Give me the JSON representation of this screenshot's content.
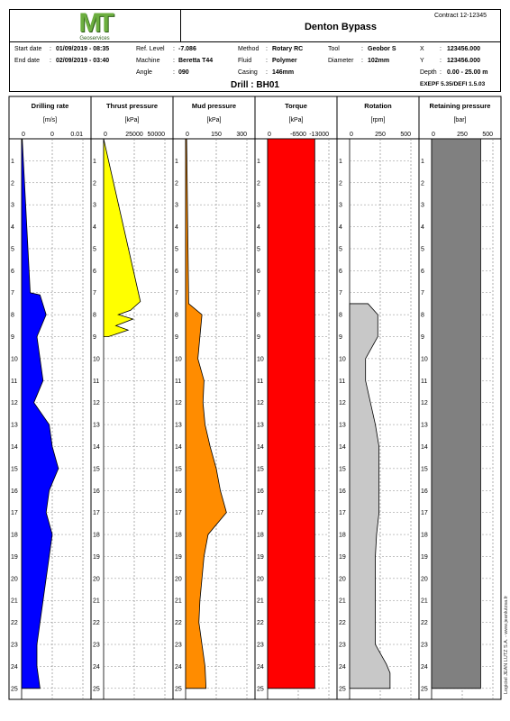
{
  "logo": {
    "letters": "MT",
    "subtitle": "Geoservices"
  },
  "title": "Denton Bypass",
  "contract": "Contract 12-12345",
  "info": {
    "start_label": "Start date",
    "start_value": "01/09/2019 - 08:35",
    "end_label": "End date",
    "end_value": "02/09/2019 - 03:40",
    "ref_label": "Ref. Level",
    "ref_value": "-7.086",
    "machine_label": "Machine",
    "machine_value": "Beretta T44",
    "angle_label": "Angle",
    "angle_value": "090",
    "method_label": "Method",
    "method_value": "Rotary RC",
    "fluid_label": "Fluid",
    "fluid_value": "Polymer",
    "casing_label": "Casing",
    "casing_value": "146mm",
    "tool_label": "Tool",
    "tool_value": "Geobor S",
    "diameter_label": "Diameter",
    "diameter_value": "102mm",
    "x_label": "X",
    "x_value": "123456.000",
    "y_label": "Y",
    "y_value": "123456.000",
    "depth_label": "Depth",
    "depth_value": "0.00 - 25.00 m",
    "colon": ":"
  },
  "drill": "Drill : BH01",
  "software": "EXEPF 5.35/DEFI 1.5.03",
  "footer_vertical": "Logiciel JEAN LUTZ S.A. - www.jeanlutzsa.fr",
  "depth_ticks": [
    "1",
    "2",
    "3",
    "4",
    "5",
    "6",
    "7",
    "8",
    "9",
    "10",
    "11",
    "12",
    "13",
    "14",
    "15",
    "16",
    "17",
    "18",
    "19",
    "20",
    "21",
    "22",
    "23",
    "24",
    "25"
  ],
  "chart_data": [
    {
      "type": "area",
      "title": "Drilling rate",
      "unit": "[m/s]",
      "ticks": [
        "0",
        "0",
        "0.01"
      ],
      "color": "#0000ff",
      "depth": [
        0,
        7.0,
        7.1,
        8,
        9,
        10,
        11,
        12,
        13,
        14,
        15,
        16,
        17,
        18,
        19,
        20,
        21,
        22,
        23,
        24,
        25
      ],
      "values": [
        0.0001,
        0.0014,
        0.003,
        0.004,
        0.0025,
        0.003,
        0.0035,
        0.002,
        0.0045,
        0.005,
        0.006,
        0.0045,
        0.004,
        0.005,
        0.0045,
        0.004,
        0.0035,
        0.003,
        0.0025,
        0.0025,
        0.003
      ],
      "xlim": [
        0,
        0.01
      ]
    },
    {
      "type": "area",
      "title": "Thrust pressure",
      "unit": "[kPa]",
      "ticks": [
        "0",
        "25000",
        "50000"
      ],
      "color": "#ffff00",
      "depth": [
        0,
        7.4,
        7.8,
        8,
        8.2,
        8.5,
        8.7,
        9
      ],
      "values": [
        0,
        30000,
        22000,
        12000,
        24000,
        10000,
        20000,
        4000
      ],
      "xlim": [
        0,
        50000
      ]
    },
    {
      "type": "area",
      "title": "Mud pressure",
      "unit": "[kPa]",
      "ticks": [
        "0",
        "150",
        "300"
      ],
      "color": "#ff8c00",
      "depth": [
        0,
        7.5,
        8,
        9,
        10,
        11,
        12,
        13,
        14,
        15,
        16,
        17,
        18,
        19,
        20,
        21,
        22,
        23,
        24,
        25
      ],
      "values": [
        5,
        15,
        80,
        70,
        60,
        90,
        85,
        95,
        120,
        150,
        170,
        200,
        110,
        90,
        80,
        70,
        65,
        80,
        95,
        100
      ],
      "xlim": [
        0,
        300
      ]
    },
    {
      "type": "area",
      "title": "Torque",
      "unit": "[kPa]",
      "ticks": [
        "0",
        "-6500",
        "-13000"
      ],
      "color": "#ff0000",
      "depth": [
        0,
        25
      ],
      "values": [
        -10000,
        -10000
      ],
      "xlim": [
        0,
        -13000
      ]
    },
    {
      "type": "area",
      "title": "Rotation",
      "unit": "[rpm]",
      "ticks": [
        "0",
        "250",
        "500"
      ],
      "color": "#c8c8c8",
      "depth": [
        7.5,
        8,
        9,
        10,
        11,
        13,
        14,
        15,
        16,
        17,
        18,
        19,
        20,
        21,
        22,
        23,
        23.9,
        24.3,
        25
      ],
      "values": [
        150,
        230,
        230,
        130,
        130,
        210,
        240,
        240,
        240,
        240,
        220,
        210,
        210,
        210,
        210,
        210,
        300,
        330,
        330
      ],
      "xlim": [
        0,
        500
      ]
    },
    {
      "type": "area",
      "title": "Retaining pressure",
      "unit": "[bar]",
      "ticks": [
        "0",
        "250",
        "500"
      ],
      "color": "#808080",
      "depth": [
        0,
        25
      ],
      "values": [
        400,
        400
      ],
      "xlim": [
        0,
        500
      ]
    }
  ]
}
